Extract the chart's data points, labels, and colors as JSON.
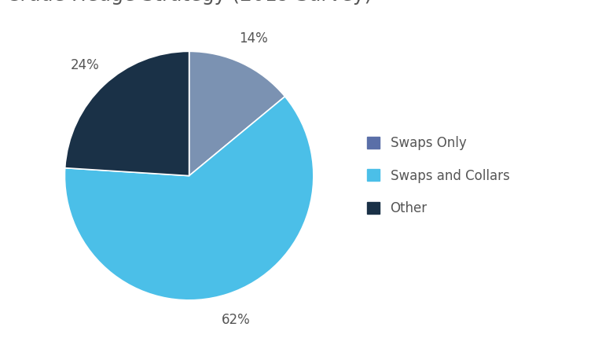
{
  "labels": [
    "Swaps Only",
    "Swaps and Collars",
    "Other"
  ],
  "values": [
    14,
    62,
    24
  ],
  "colors": [
    "#7b92b2",
    "#4bbfe8",
    "#1a3147"
  ],
  "pct_labels": [
    "14%",
    "62%",
    "24%"
  ],
  "legend_labels": [
    "Swaps Only",
    "Swaps and Collars",
    "Other"
  ],
  "legend_colors": [
    "#5a6fa8",
    "#4bbfe8",
    "#1a3147"
  ],
  "title_fontsize": 18,
  "label_fontsize": 12,
  "legend_fontsize": 12,
  "startangle": 90,
  "background_color": "#ffffff"
}
